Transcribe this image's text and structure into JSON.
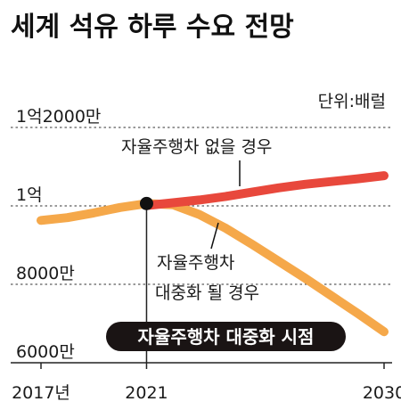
{
  "chart_data": {
    "type": "line",
    "title": "세계 석유 하루 수요 전망",
    "unit_label": "단위:배럴",
    "x_ticks": [
      "2017년",
      "2021",
      "2030"
    ],
    "y_ticks": [
      "1억2000만",
      "1억",
      "8000만",
      "6000만"
    ],
    "y_tick_values": [
      120000000,
      100000000,
      80000000,
      60000000
    ],
    "ylim": [
      60000000,
      120000000
    ],
    "xlim": [
      2017,
      2030
    ],
    "grid": true,
    "series": [
      {
        "name": "자율주행차 없을 경우",
        "color": "#e8483c",
        "x": [
          2021,
          2022,
          2023,
          2024,
          2025,
          2026,
          2027,
          2028,
          2029,
          2030
        ],
        "y": [
          100100000,
          100800000,
          101500000,
          102400000,
          103500000,
          104600000,
          105500000,
          106200000,
          106900000,
          107700000
        ]
      },
      {
        "name": "자율주행차 대중화 될 경우",
        "color": "#f5a84a",
        "x": [
          2017,
          2018,
          2019,
          2020,
          2021,
          2022,
          2023,
          2024,
          2025,
          2026,
          2027,
          2028,
          2029,
          2030
        ],
        "y": [
          96300000,
          97000000,
          98200000,
          99600000,
          100600000,
          100300000,
          97800000,
          94300000,
          90200000,
          85900000,
          81600000,
          77100000,
          72600000,
          67900000
        ]
      }
    ],
    "annotations": {
      "red_label": "자율주행차 없을 경우",
      "orange_label_line1": "자율주행차",
      "orange_label_line2": "대중화 될 경우",
      "marker_year": 2021,
      "marker_value": 100600000,
      "marker_label": "자율주행차 대중화 시점"
    }
  }
}
